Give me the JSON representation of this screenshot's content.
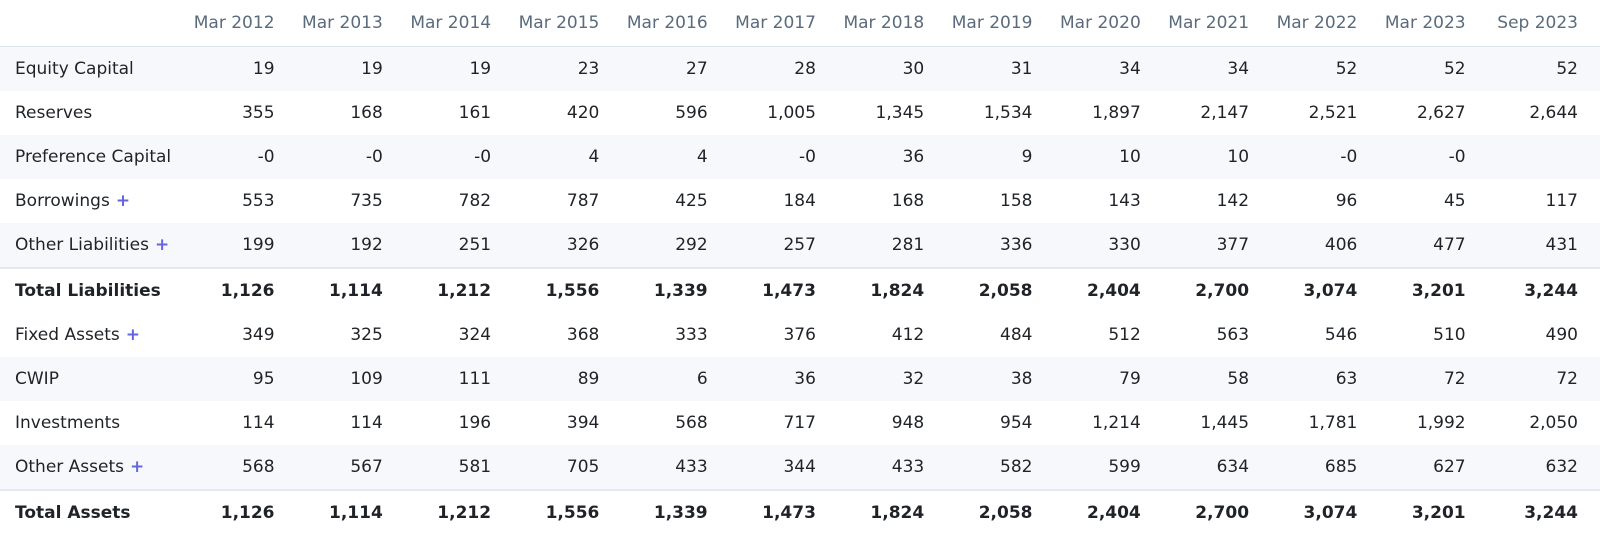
{
  "headers": [
    "Mar 2012",
    "Mar 2013",
    "Mar 2014",
    "Mar 2015",
    "Mar 2016",
    "Mar 2017",
    "Mar 2018",
    "Mar 2019",
    "Mar 2020",
    "Mar 2021",
    "Mar 2022",
    "Mar 2023",
    "Sep 2023"
  ],
  "rows": [
    {
      "label": "Equity Capital",
      "expandable": false,
      "total": false,
      "values": [
        "19",
        "19",
        "19",
        "23",
        "27",
        "28",
        "30",
        "31",
        "34",
        "34",
        "52",
        "52",
        "52"
      ]
    },
    {
      "label": "Reserves",
      "expandable": false,
      "total": false,
      "values": [
        "355",
        "168",
        "161",
        "420",
        "596",
        "1,005",
        "1,345",
        "1,534",
        "1,897",
        "2,147",
        "2,521",
        "2,627",
        "2,644"
      ]
    },
    {
      "label": "Preference Capital",
      "expandable": false,
      "total": false,
      "values": [
        "-0",
        "-0",
        "-0",
        "4",
        "4",
        "-0",
        "36",
        "9",
        "10",
        "10",
        "-0",
        "-0",
        ""
      ]
    },
    {
      "label": "Borrowings",
      "expandable": true,
      "total": false,
      "values": [
        "553",
        "735",
        "782",
        "787",
        "425",
        "184",
        "168",
        "158",
        "143",
        "142",
        "96",
        "45",
        "117"
      ]
    },
    {
      "label": "Other Liabilities",
      "expandable": true,
      "total": false,
      "values": [
        "199",
        "192",
        "251",
        "326",
        "292",
        "257",
        "281",
        "336",
        "330",
        "377",
        "406",
        "477",
        "431"
      ]
    },
    {
      "label": "Total Liabilities",
      "expandable": false,
      "total": true,
      "values": [
        "1,126",
        "1,114",
        "1,212",
        "1,556",
        "1,339",
        "1,473",
        "1,824",
        "2,058",
        "2,404",
        "2,700",
        "3,074",
        "3,201",
        "3,244"
      ]
    },
    {
      "label": "Fixed Assets",
      "expandable": true,
      "total": false,
      "values": [
        "349",
        "325",
        "324",
        "368",
        "333",
        "376",
        "412",
        "484",
        "512",
        "563",
        "546",
        "510",
        "490"
      ]
    },
    {
      "label": "CWIP",
      "expandable": false,
      "total": false,
      "values": [
        "95",
        "109",
        "111",
        "89",
        "6",
        "36",
        "32",
        "38",
        "79",
        "58",
        "63",
        "72",
        "72"
      ]
    },
    {
      "label": "Investments",
      "expandable": false,
      "total": false,
      "values": [
        "114",
        "114",
        "196",
        "394",
        "568",
        "717",
        "948",
        "954",
        "1,214",
        "1,445",
        "1,781",
        "1,992",
        "2,050"
      ]
    },
    {
      "label": "Other Assets",
      "expandable": true,
      "total": false,
      "values": [
        "568",
        "567",
        "581",
        "705",
        "433",
        "344",
        "433",
        "582",
        "599",
        "634",
        "685",
        "627",
        "632"
      ]
    },
    {
      "label": "Total Assets",
      "expandable": false,
      "total": true,
      "values": [
        "1,126",
        "1,114",
        "1,212",
        "1,556",
        "1,339",
        "1,473",
        "1,824",
        "2,058",
        "2,404",
        "2,700",
        "3,074",
        "3,201",
        "3,244"
      ]
    }
  ],
  "expand_symbol": "+",
  "colors": {
    "header_text": "#5b6b7c",
    "stripe": "#f7f8fc",
    "plus": "#6466e0",
    "body_text": "#1f2328"
  }
}
